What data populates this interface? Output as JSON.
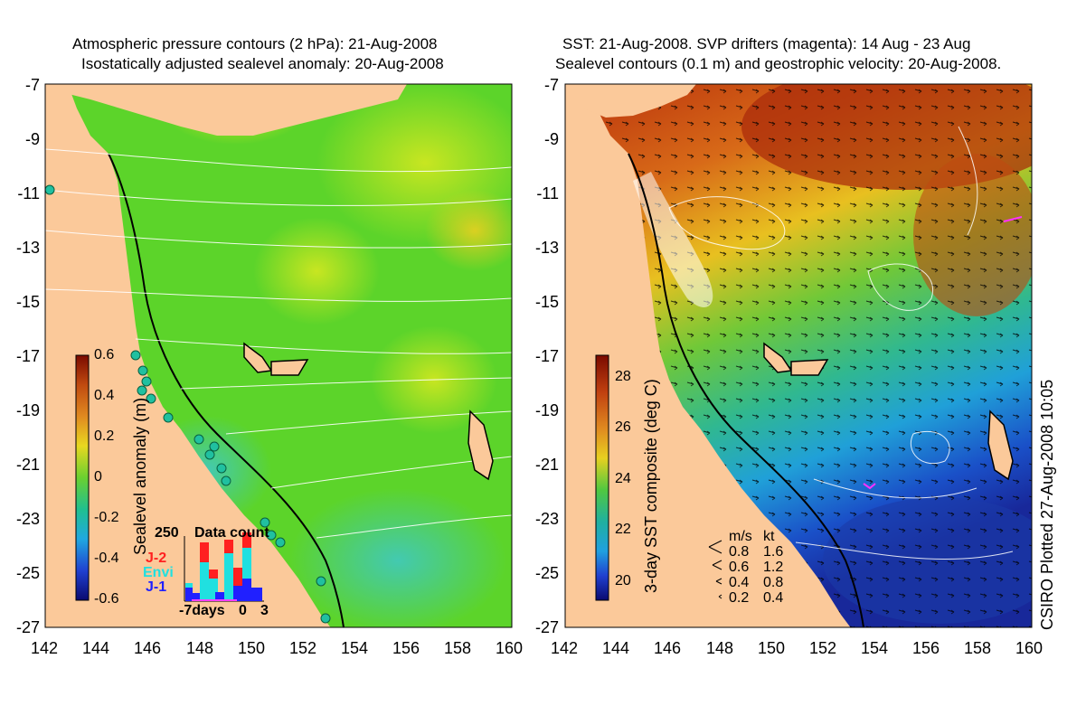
{
  "left_panel": {
    "title_line1": "Atmospheric pressure contours (2 hPa): 21-Aug-2008",
    "title_line2": "Isostatically adjusted sealevel anomaly: 20-Aug-2008",
    "colorbar": {
      "label": "Sealevel anomaly (m)",
      "ticks": [
        "0.6",
        "0.4",
        "0.2",
        "0",
        "-0.2",
        "-0.4",
        "-0.6"
      ]
    },
    "data_count": {
      "title": "Data count",
      "ymax_label": "250",
      "legend": [
        {
          "name": "J-2",
          "color": "#ff2020"
        },
        {
          "name": "Envi",
          "color": "#20e0e0"
        },
        {
          "name": "J-1",
          "color": "#2020ff"
        }
      ],
      "x_ticks": [
        "-7days",
        "0",
        "3"
      ]
    }
  },
  "right_panel": {
    "title_line1": "SST: 21-Aug-2008. SVP drifters (magenta): 14 Aug - 23 Aug",
    "title_line2": "Sealevel contours (0.1 m) and geostrophic velocity: 20-Aug-2008.",
    "colorbar": {
      "label": "3-day SST composite (deg C)",
      "ticks": [
        "28",
        "26",
        "24",
        "22",
        "20"
      ]
    },
    "velocity_legend": {
      "header_ms": "m/s",
      "header_kt": "kt",
      "rows": [
        {
          "ms": "0.8",
          "kt": "1.6"
        },
        {
          "ms": "0.6",
          "kt": "1.2"
        },
        {
          "ms": "0.4",
          "kt": "0.8"
        },
        {
          "ms": "0.2",
          "kt": "0.4"
        }
      ]
    }
  },
  "axes": {
    "y_ticks": [
      "-7",
      "-9",
      "-11",
      "-13",
      "-15",
      "-17",
      "-19",
      "-21",
      "-23",
      "-25",
      "-27"
    ],
    "x_ticks": [
      "142",
      "144",
      "146",
      "148",
      "150",
      "152",
      "154",
      "156",
      "158",
      "160"
    ]
  },
  "credit": "CSIRO Plotted 27-Aug-2008 10:05",
  "colors": {
    "land": "#fbc99a",
    "sla_green": "#5cd42a",
    "sst_warm": "#b83a10",
    "sst_cool": "#1a3fc0"
  }
}
